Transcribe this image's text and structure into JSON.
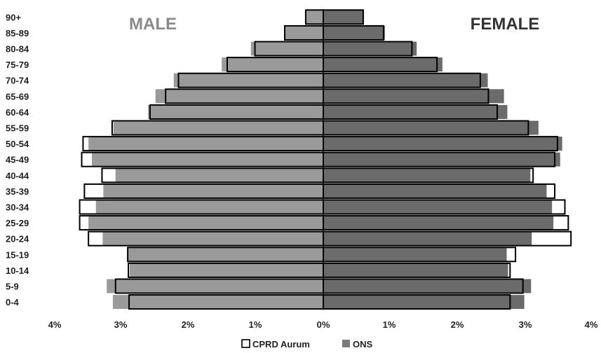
{
  "chart_data": {
    "type": "bar",
    "orientation": "horizontal",
    "subtype": "population-pyramid",
    "categories": [
      "90+",
      "85-89",
      "80-84",
      "75-79",
      "70-74",
      "65-69",
      "60-64",
      "55-59",
      "50-54",
      "45-49",
      "40-44",
      "35-39",
      "30-34",
      "25-29",
      "20-24",
      "15-19",
      "10-14",
      "5-9",
      "0-4"
    ],
    "side_labels": {
      "male": "MALE",
      "female": "FEMALE"
    },
    "series": [
      {
        "name": "CPRD Aurum",
        "style": "outline",
        "male": [
          0.26,
          0.57,
          1.01,
          1.42,
          2.14,
          2.33,
          2.56,
          3.12,
          3.55,
          3.57,
          3.27,
          3.53,
          3.6,
          3.6,
          3.47,
          2.89,
          2.88,
          3.07,
          2.87
        ],
        "female": [
          0.59,
          0.89,
          1.31,
          1.68,
          2.32,
          2.44,
          2.57,
          3.03,
          3.46,
          3.42,
          3.1,
          3.42,
          3.57,
          3.62,
          3.66,
          2.84,
          2.76,
          2.95,
          2.76
        ]
      },
      {
        "name": "ONS",
        "style": "filled",
        "male": [
          0.26,
          0.57,
          1.07,
          1.5,
          2.21,
          2.48,
          2.59,
          3.1,
          3.47,
          3.42,
          3.07,
          3.25,
          3.36,
          3.47,
          3.26,
          2.88,
          2.86,
          3.2,
          3.11
        ],
        "female": [
          0.59,
          0.91,
          1.38,
          1.76,
          2.43,
          2.67,
          2.72,
          3.18,
          3.53,
          3.5,
          3.06,
          3.3,
          3.38,
          3.4,
          3.08,
          2.71,
          2.73,
          3.07,
          2.97
        ]
      }
    ],
    "x_ticks": [
      "4%",
      "3%",
      "2%",
      "1%",
      "0%",
      "1%",
      "2%",
      "3%",
      "4%"
    ],
    "xlim": [
      -4,
      4
    ],
    "unit": "%",
    "legend": {
      "placement": "bottom-center",
      "items": [
        "CPRD Aurum",
        "ONS"
      ]
    },
    "grid": false,
    "colors": {
      "male_fill": "#9a9a9a",
      "female_fill": "#6b6b6b",
      "outline": "#000000",
      "side_label_male": "#8a8a8a",
      "side_label_female": "#333333"
    }
  }
}
